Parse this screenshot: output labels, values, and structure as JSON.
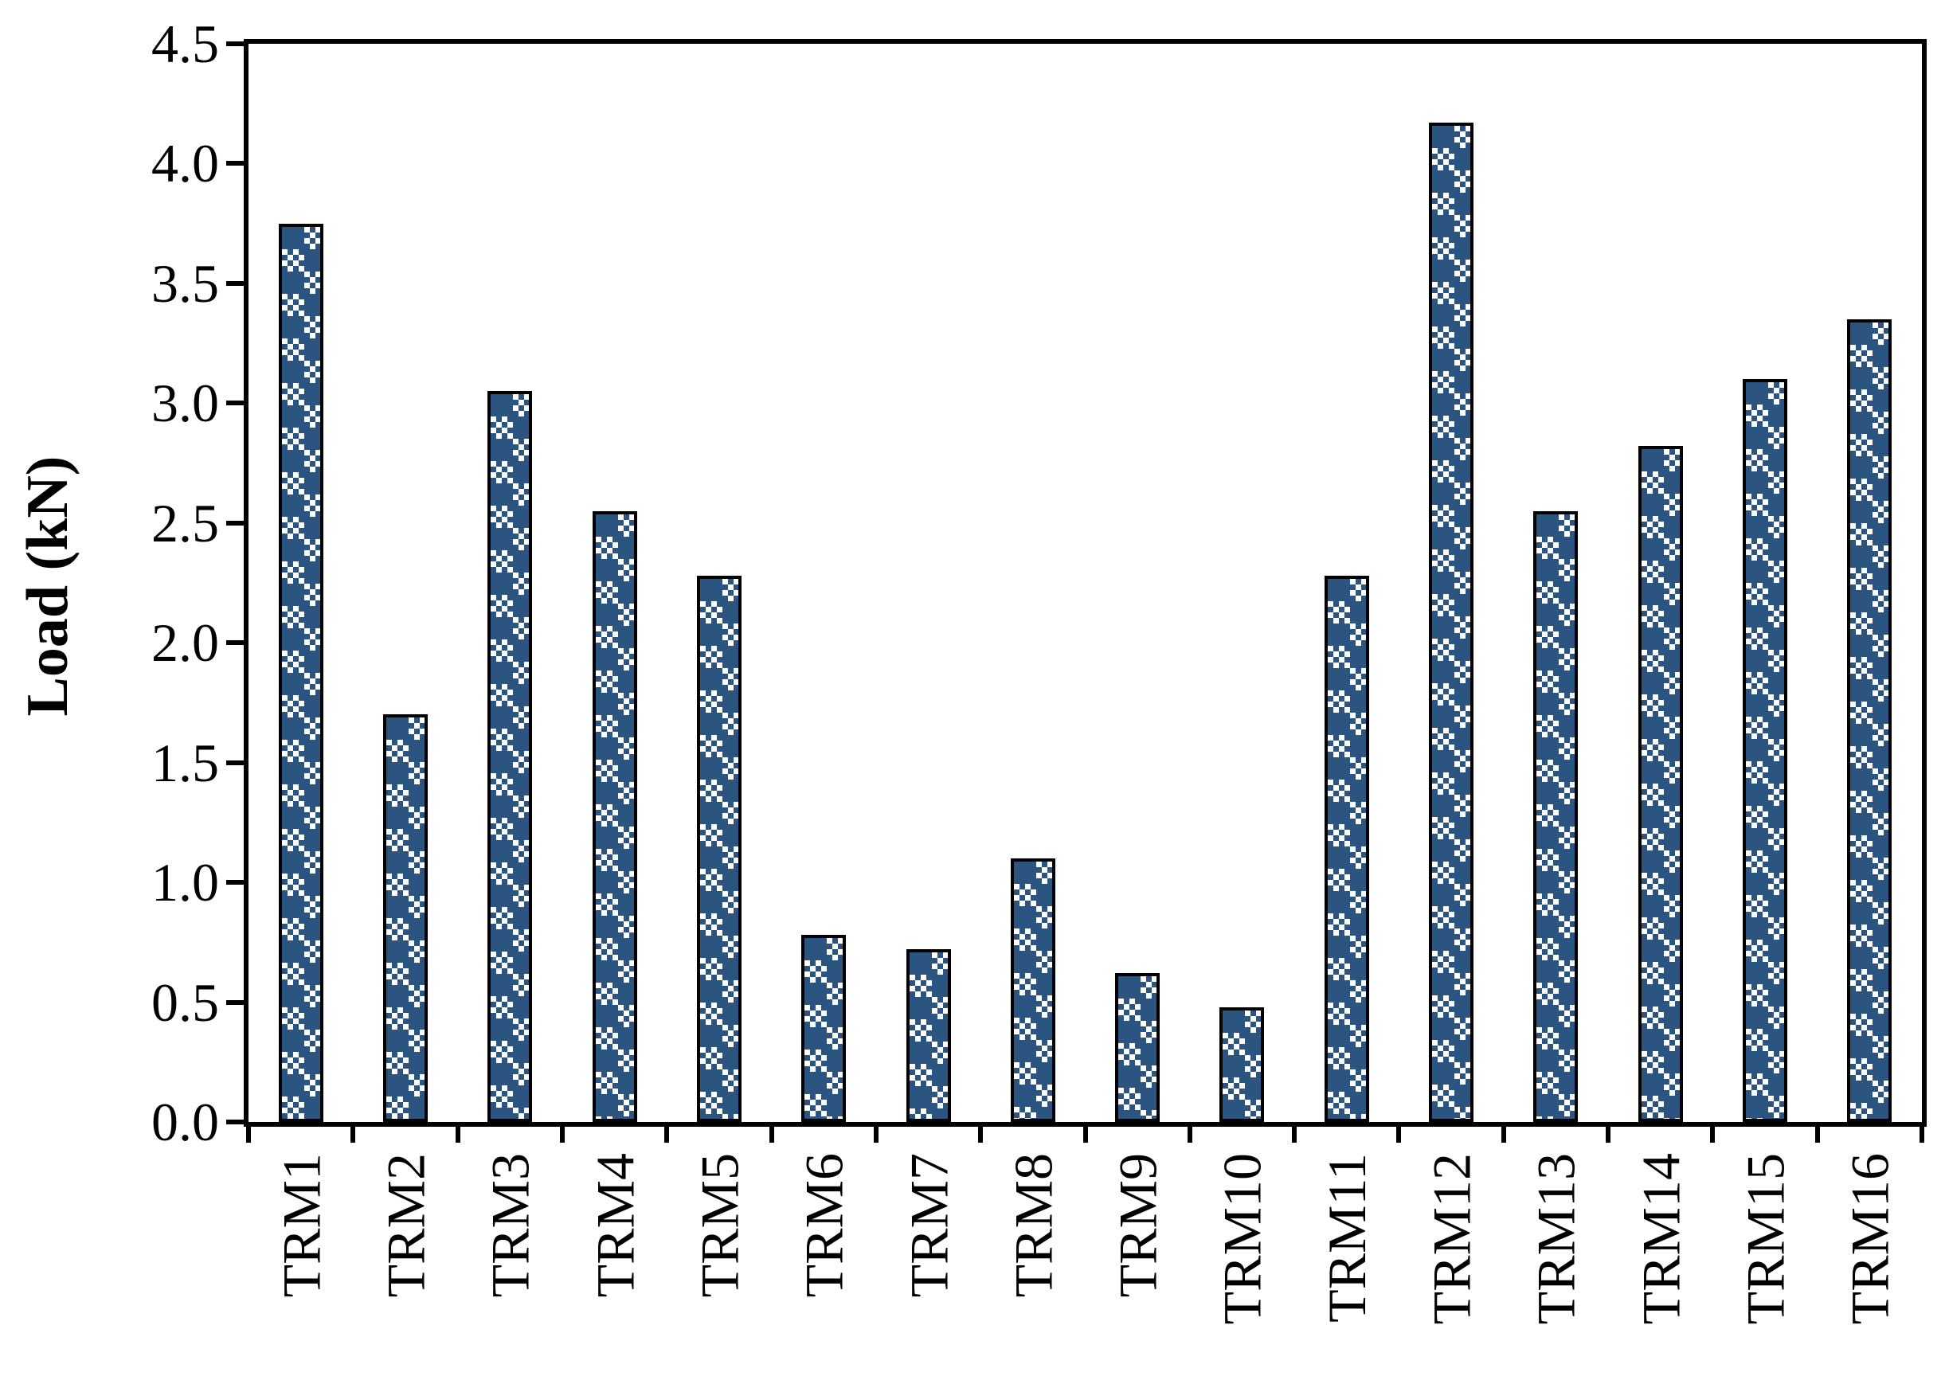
{
  "figure": {
    "background": "#ffffff",
    "bar_fill_color": "#2b5480",
    "bar_border_color": "#000000",
    "axis_color": "#000000"
  },
  "chart_data": {
    "type": "bar",
    "title": "",
    "xlabel": "",
    "ylabel": "Load (kN)",
    "categories": [
      "TRM1",
      "TRM2",
      "TRM3",
      "TRM4",
      "TRM5",
      "TRM6",
      "TRM7",
      "TRM8",
      "TRM9",
      "TRM10",
      "TRM11",
      "TRM12",
      "TRM13",
      "TRM14",
      "TRM15",
      "TRM16"
    ],
    "values": [
      3.75,
      1.7,
      3.05,
      2.55,
      2.28,
      0.78,
      0.72,
      1.1,
      0.62,
      0.48,
      2.28,
      4.17,
      2.55,
      2.82,
      3.1,
      3.35
    ],
    "ylim": [
      0,
      4.5
    ],
    "ytick_step": 0.5,
    "ytick_labels": [
      "0.0",
      "0.5",
      "1.0",
      "1.5",
      "2.0",
      "2.5",
      "3.0",
      "3.5",
      "4.0",
      "4.5"
    ],
    "grid": false,
    "legend": false,
    "bar_pattern": "checkerboard",
    "bar_color": "#2b5480",
    "x_tick_label_rotation": 90
  }
}
